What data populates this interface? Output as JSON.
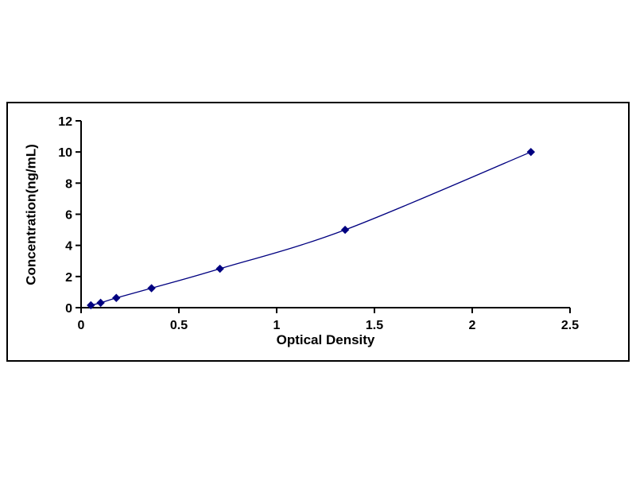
{
  "figure": {
    "background_color": "#ffffff",
    "frame_border_color": "#000000"
  },
  "chart_data": {
    "type": "line",
    "title": "",
    "xlabel": "Optical Density",
    "ylabel": "Concentration(ng/mL)",
    "x": [
      0.05,
      0.1,
      0.18,
      0.36,
      0.71,
      1.35,
      2.3
    ],
    "y": [
      0.156,
      0.312,
      0.625,
      1.25,
      2.5,
      5,
      10
    ],
    "xlim": [
      0,
      2.5
    ],
    "ylim": [
      0,
      12
    ],
    "xticks": [
      "0",
      "0.5",
      "1",
      "1.5",
      "2",
      "2.5"
    ],
    "xtick_values": [
      0,
      0.5,
      1,
      1.5,
      2,
      2.5
    ],
    "yticks": [
      "0",
      "2",
      "4",
      "6",
      "8",
      "10",
      "12"
    ],
    "ytick_values": [
      0,
      2,
      4,
      6,
      8,
      10,
      12
    ],
    "grid": false,
    "legend": null,
    "line_color": "#000080",
    "marker": "diamond",
    "marker_color": "#000080",
    "axis_color": "#000000"
  }
}
